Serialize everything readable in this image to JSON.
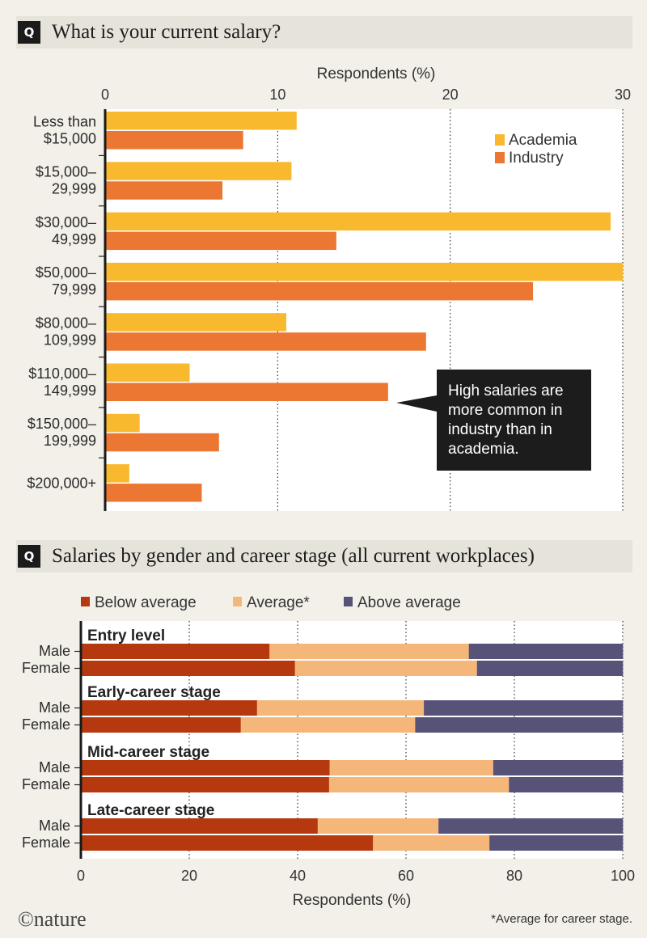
{
  "section1": {
    "badge": "Q",
    "question": "What is your current salary?",
    "axis_title": "Respondents (%)",
    "callout": [
      "High salaries are",
      "more common in",
      "industry than in",
      "academia."
    ]
  },
  "section2": {
    "badge": "Q",
    "question": "Salaries by gender and career stage (all current workplaces)",
    "axis_title": "Respondents (%)"
  },
  "footer": {
    "logo": "©nature",
    "note": "*Average for career stage."
  },
  "colors": {
    "academia": "#f9b92e",
    "industry": "#ec7732",
    "below": "#b5380e",
    "average": "#f5b67a",
    "above": "#575378",
    "callout_bg": "#1c1c1c"
  },
  "chart_data": [
    {
      "type": "bar",
      "orientation": "horizontal",
      "title": "What is your current salary?",
      "xlabel": "Respondents (%)",
      "xlim": [
        0,
        30
      ],
      "xticks": [
        0,
        10,
        20,
        30
      ],
      "legend_position": "top-right",
      "categories": [
        [
          "Less than",
          "$15,000"
        ],
        [
          "$15,000–",
          "29,999"
        ],
        [
          "$30,000–",
          "49,999"
        ],
        [
          "$50,000–",
          "79,999"
        ],
        [
          "$80,000–",
          "109,999"
        ],
        [
          "$110,000–",
          "149,999"
        ],
        [
          "$150,000–",
          "199,999"
        ],
        [
          "$200,000+"
        ]
      ],
      "series": [
        {
          "name": "Academia",
          "values": [
            11.1,
            10.8,
            29.3,
            30.0,
            10.5,
            4.9,
            2.0,
            1.4
          ]
        },
        {
          "name": "Industry",
          "values": [
            8.0,
            6.8,
            13.4,
            24.8,
            18.6,
            16.4,
            6.6,
            5.6
          ]
        }
      ]
    },
    {
      "type": "bar",
      "orientation": "horizontal",
      "stacked": true,
      "title": "Salaries by gender and career stage (all current workplaces)",
      "xlabel": "Respondents (%)",
      "xlim": [
        0,
        100
      ],
      "xticks": [
        0,
        20,
        40,
        60,
        80,
        100
      ],
      "legend_position": "top",
      "series_names": [
        "Below average",
        "Average*",
        "Above average"
      ],
      "groups": [
        {
          "stage": "Entry level",
          "rows": [
            {
              "label": "Male",
              "values": [
                34.8,
                36.8,
                28.4
              ]
            },
            {
              "label": "Female",
              "values": [
                39.5,
                33.6,
                26.9
              ]
            }
          ]
        },
        {
          "stage": "Early-career stage",
          "rows": [
            {
              "label": "Male",
              "values": [
                32.5,
                30.8,
                36.7
              ]
            },
            {
              "label": "Female",
              "values": [
                29.5,
                32.2,
                38.3
              ]
            }
          ]
        },
        {
          "stage": "Mid-career stage",
          "rows": [
            {
              "label": "Male",
              "values": [
                45.9,
                30.2,
                23.9
              ]
            },
            {
              "label": "Female",
              "values": [
                45.8,
                33.2,
                21.0
              ]
            }
          ]
        },
        {
          "stage": "Late-career stage",
          "rows": [
            {
              "label": "Male",
              "values": [
                43.7,
                22.3,
                34.0
              ]
            },
            {
              "label": "Female",
              "values": [
                53.9,
                21.5,
                24.6
              ]
            }
          ]
        }
      ]
    }
  ]
}
